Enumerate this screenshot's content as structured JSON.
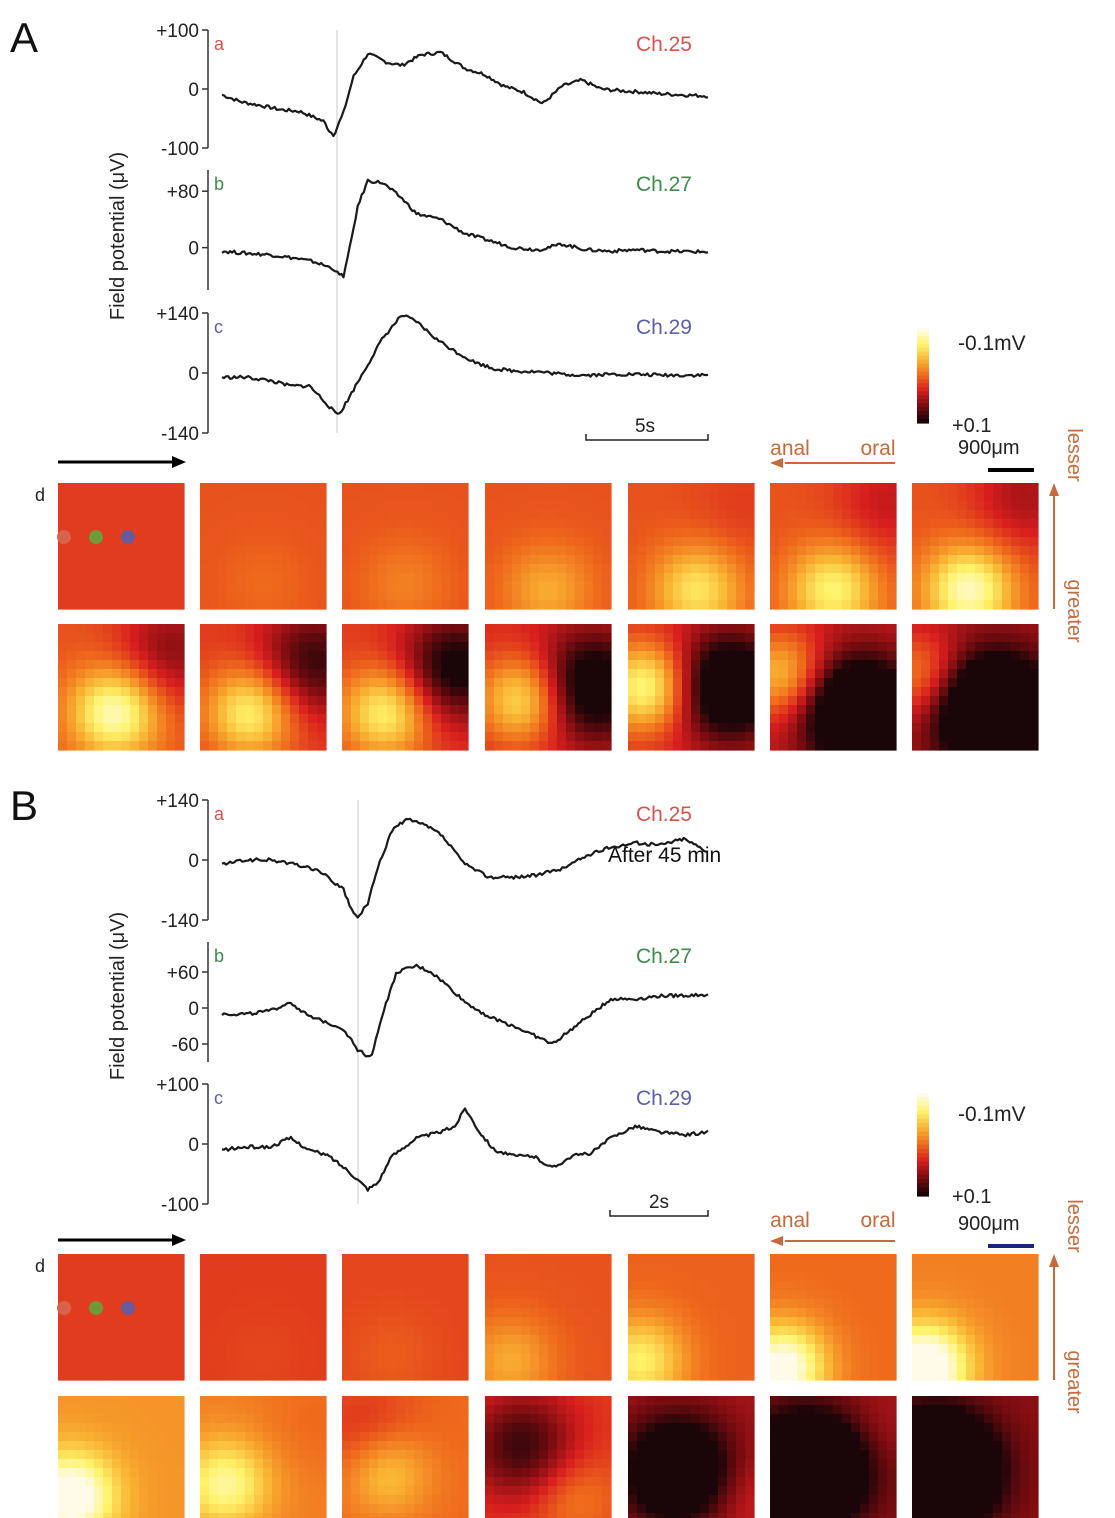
{
  "colors": {
    "trace": "#1a1a1a",
    "ch25": "#d9534a",
    "ch27": "#3c8c4a",
    "ch29": "#5a5fa8",
    "orientation": "#c8693a",
    "arrow_time": "#000000",
    "scalebar_A": "#000000",
    "scalebar_B": "#1a237e",
    "colormap": [
      "#1a0508",
      "#7a0c10",
      "#d81e1e",
      "#ef6a1c",
      "#f9b232",
      "#fff36a",
      "#fffbe8"
    ],
    "electrodes": [
      "#d9634a",
      "#6f9a3a",
      "#6a5a9c"
    ]
  },
  "chart_data": [
    {
      "type": "line",
      "panel": "A",
      "ylabel": "Field potential (μV)",
      "time_scale_label": "5s",
      "series": [
        {
          "letter": "a",
          "name": "Ch.25",
          "ticks": [
            "+100",
            "0",
            "-100"
          ],
          "tick_values": [
            100,
            0,
            -100
          ],
          "ylim": [
            -100,
            100
          ],
          "x": [
            0,
            4,
            8,
            12,
            16,
            19,
            21,
            22,
            23,
            25,
            27,
            30,
            34,
            37,
            41,
            45,
            50,
            54,
            58,
            62,
            66,
            70,
            74,
            78,
            82,
            86,
            90,
            100
          ],
          "y": [
            -10,
            -22,
            -28,
            -35,
            -38,
            -48,
            -55,
            -70,
            -78,
            -40,
            20,
            60,
            45,
            40,
            58,
            62,
            35,
            25,
            5,
            -5,
            -25,
            5,
            15,
            0,
            -3,
            -5,
            -8,
            -12
          ]
        },
        {
          "letter": "b",
          "name": "Ch.27",
          "ticks": [
            "+80",
            "0"
          ],
          "tick_values": [
            80,
            0
          ],
          "ylim": [
            -60,
            110
          ],
          "x": [
            0,
            5,
            10,
            15,
            19,
            21,
            23,
            24,
            25,
            26,
            28,
            30,
            33,
            37,
            40,
            45,
            50,
            55,
            60,
            65,
            70,
            75,
            80,
            85,
            90,
            100
          ],
          "y": [
            -5,
            -8,
            -10,
            -15,
            -20,
            -25,
            -30,
            -38,
            -40,
            -10,
            60,
            95,
            92,
            70,
            48,
            40,
            20,
            10,
            0,
            -3,
            5,
            -3,
            -5,
            -3,
            -5,
            -6
          ]
        },
        {
          "letter": "c",
          "name": "Ch.29",
          "ticks": [
            "+140",
            "0",
            "-140"
          ],
          "tick_values": [
            140,
            0,
            -140
          ],
          "ylim": [
            -140,
            140
          ],
          "x": [
            0,
            5,
            10,
            14,
            18,
            21,
            23,
            24,
            25,
            27,
            30,
            33,
            37,
            40,
            44,
            48,
            52,
            56,
            60,
            65,
            70,
            75,
            80,
            85,
            90,
            100
          ],
          "y": [
            -10,
            -10,
            -18,
            -30,
            -30,
            -65,
            -90,
            -96,
            -80,
            -40,
            20,
            80,
            135,
            120,
            80,
            50,
            25,
            10,
            5,
            3,
            -3,
            -5,
            -3,
            -3,
            -5,
            -5
          ]
        }
      ]
    },
    {
      "type": "line",
      "panel": "B",
      "ylabel": "Field potential (μV)",
      "time_scale_label": "2s",
      "annotation": "After 45 min",
      "series": [
        {
          "letter": "a",
          "name": "Ch.25",
          "ticks": [
            "+140",
            "0",
            "-140"
          ],
          "tick_values": [
            140,
            0,
            -140
          ],
          "ylim": [
            -140,
            140
          ],
          "x": [
            0,
            5,
            10,
            15,
            20,
            25,
            27,
            28,
            30,
            32,
            35,
            38,
            42,
            45,
            50,
            55,
            60,
            65,
            70,
            75,
            80,
            85,
            90,
            95,
            100
          ],
          "y": [
            -10,
            0,
            0,
            -10,
            -25,
            -70,
            -125,
            -135,
            -100,
            -20,
            70,
            95,
            80,
            60,
            -10,
            -40,
            -40,
            -35,
            -20,
            10,
            30,
            40,
            35,
            50,
            20
          ]
        },
        {
          "letter": "b",
          "name": "Ch.27",
          "ticks": [
            "+60",
            "0",
            "-60"
          ],
          "tick_values": [
            60,
            0,
            -60
          ],
          "ylim": [
            -90,
            110
          ],
          "x": [
            0,
            5,
            10,
            14,
            18,
            22,
            25,
            28,
            30,
            31,
            33,
            36,
            40,
            43,
            46,
            50,
            55,
            60,
            64,
            68,
            72,
            76,
            80,
            85,
            90,
            100
          ],
          "y": [
            -10,
            -10,
            -5,
            10,
            -15,
            -25,
            -35,
            -70,
            -80,
            -75,
            -10,
            60,
            70,
            60,
            40,
            10,
            -15,
            -30,
            -45,
            -60,
            -35,
            -10,
            15,
            15,
            20,
            22
          ]
        },
        {
          "letter": "c",
          "name": "Ch.29",
          "ticks": [
            "+100",
            "0",
            "-100"
          ],
          "tick_values": [
            100,
            0,
            -100
          ],
          "ylim": [
            -100,
            100
          ],
          "x": [
            0,
            5,
            10,
            14,
            18,
            22,
            26,
            28,
            30,
            32,
            35,
            40,
            45,
            48,
            50,
            53,
            56,
            60,
            64,
            68,
            72,
            76,
            80,
            85,
            90,
            95,
            100
          ],
          "y": [
            -10,
            -5,
            -5,
            10,
            -10,
            -20,
            -45,
            -60,
            -75,
            -65,
            -20,
            10,
            20,
            30,
            60,
            20,
            -10,
            -20,
            -20,
            -40,
            -20,
            -15,
            10,
            30,
            20,
            15,
            20
          ]
        }
      ]
    },
    {
      "type": "heatmap",
      "panel": "A",
      "label": "d",
      "colorbar": {
        "top_label": "-0.1mV",
        "bottom_label": "+0.1"
      },
      "scale_label": "900μm",
      "axis_labels": {
        "anal": "anal",
        "oral": "oral",
        "lesser": "lesser",
        "greater": "greater"
      },
      "electrodes": [
        "Ch.25",
        "Ch.27",
        "Ch.29"
      ],
      "frames": [
        {
          "row": 0,
          "col": 0,
          "base": 0.4,
          "yl": 0.0,
          "yl_cx": 0.5,
          "yl_cy": 0.8,
          "rd": 0.0,
          "rd_cx": 0.8,
          "rd_cy": 0.5
        },
        {
          "row": 0,
          "col": 1,
          "base": 0.45,
          "yl": 0.05,
          "yl_cx": 0.5,
          "yl_cy": 0.8,
          "rd": 0.0,
          "rd_cx": 0.8,
          "rd_cy": 0.5
        },
        {
          "row": 0,
          "col": 2,
          "base": 0.45,
          "yl": 0.1,
          "yl_cx": 0.5,
          "yl_cy": 0.8,
          "rd": 0.0,
          "rd_cx": 0.8,
          "rd_cy": 0.5
        },
        {
          "row": 0,
          "col": 3,
          "base": 0.45,
          "yl": 0.2,
          "yl_cx": 0.5,
          "yl_cy": 0.85,
          "rd": 0.0,
          "rd_cx": 0.8,
          "rd_cy": 0.5
        },
        {
          "row": 0,
          "col": 4,
          "base": 0.45,
          "yl": 0.35,
          "yl_cx": 0.55,
          "yl_cy": 0.85,
          "rd": 0.05,
          "rd_cx": 0.9,
          "rd_cy": 0.2
        },
        {
          "row": 0,
          "col": 5,
          "base": 0.45,
          "yl": 0.4,
          "yl_cx": 0.5,
          "yl_cy": 0.85,
          "rd": 0.15,
          "rd_cx": 0.95,
          "rd_cy": 0.15
        },
        {
          "row": 0,
          "col": 6,
          "base": 0.45,
          "yl": 0.5,
          "yl_cx": 0.45,
          "yl_cy": 0.85,
          "rd": 0.2,
          "rd_cx": 0.9,
          "rd_cy": 0.1
        },
        {
          "row": 1,
          "col": 0,
          "base": 0.45,
          "yl": 0.5,
          "yl_cx": 0.45,
          "yl_cy": 0.7,
          "rd": 0.25,
          "rd_cx": 0.9,
          "rd_cy": 0.2
        },
        {
          "row": 1,
          "col": 1,
          "base": 0.4,
          "yl": 0.45,
          "yl_cx": 0.4,
          "yl_cy": 0.7,
          "rd": 0.35,
          "rd_cx": 0.9,
          "rd_cy": 0.3
        },
        {
          "row": 1,
          "col": 2,
          "base": 0.4,
          "yl": 0.45,
          "yl_cx": 0.35,
          "yl_cy": 0.7,
          "rd": 0.45,
          "rd_cx": 0.9,
          "rd_cy": 0.35
        },
        {
          "row": 1,
          "col": 3,
          "base": 0.35,
          "yl": 0.45,
          "yl_cx": 0.3,
          "yl_cy": 0.6,
          "rd": 0.5,
          "rd_cx": 0.85,
          "rd_cy": 0.5
        },
        {
          "row": 1,
          "col": 4,
          "base": 0.35,
          "yl": 0.55,
          "yl_cx": 0.15,
          "yl_cy": 0.5,
          "rd": 0.6,
          "rd_cx": 0.8,
          "rd_cy": 0.5
        },
        {
          "row": 1,
          "col": 5,
          "base": 0.3,
          "yl": 0.4,
          "yl_cx": 0.1,
          "yl_cy": 0.4,
          "rd": 0.75,
          "rd_cx": 0.7,
          "rd_cy": 0.7
        },
        {
          "row": 1,
          "col": 6,
          "base": 0.25,
          "yl": 0.3,
          "yl_cx": 0.05,
          "yl_cy": 0.4,
          "rd": 0.85,
          "rd_cx": 0.65,
          "rd_cy": 0.7
        }
      ]
    },
    {
      "type": "heatmap",
      "panel": "B",
      "label": "d",
      "colorbar": {
        "top_label": "-0.1mV",
        "bottom_label": "+0.1"
      },
      "scale_label": "900μm",
      "axis_labels": {
        "anal": "anal",
        "oral": "oral",
        "lesser": "lesser",
        "greater": "greater"
      },
      "electrodes": [
        "Ch.25",
        "Ch.27",
        "Ch.29"
      ],
      "frames": [
        {
          "row": 0,
          "col": 0,
          "base": 0.4,
          "yl": 0.0,
          "yl_cx": 0.5,
          "yl_cy": 0.8,
          "rd": 0.0,
          "rd_cx": 0.8,
          "rd_cy": 0.5
        },
        {
          "row": 0,
          "col": 1,
          "base": 0.4,
          "yl": 0.02,
          "yl_cx": 0.5,
          "yl_cy": 0.8,
          "rd": 0.0,
          "rd_cx": 0.8,
          "rd_cy": 0.5
        },
        {
          "row": 0,
          "col": 2,
          "base": 0.42,
          "yl": 0.05,
          "yl_cx": 0.4,
          "yl_cy": 0.8,
          "rd": 0.0,
          "rd_cx": 0.8,
          "rd_cy": 0.5
        },
        {
          "row": 0,
          "col": 3,
          "base": 0.45,
          "yl": 0.2,
          "yl_cx": 0.2,
          "yl_cy": 0.85,
          "rd": 0.0,
          "rd_cx": 0.8,
          "rd_cy": 0.5
        },
        {
          "row": 0,
          "col": 4,
          "base": 0.48,
          "yl": 0.35,
          "yl_cx": 0.1,
          "yl_cy": 0.85,
          "rd": 0.0,
          "rd_cx": 0.8,
          "rd_cy": 0.5
        },
        {
          "row": 0,
          "col": 5,
          "base": 0.5,
          "yl": 0.55,
          "yl_cx": 0.1,
          "yl_cy": 0.9,
          "rd": 0.0,
          "rd_cx": 0.8,
          "rd_cy": 0.5
        },
        {
          "row": 0,
          "col": 6,
          "base": 0.55,
          "yl": 0.6,
          "yl_cx": 0.1,
          "yl_cy": 0.9,
          "rd": 0.0,
          "rd_cx": 0.8,
          "rd_cy": 0.5
        },
        {
          "row": 1,
          "col": 0,
          "base": 0.6,
          "yl": 0.5,
          "yl_cx": 0.1,
          "yl_cy": 0.8,
          "rd": 0.0,
          "rd_cx": 0.8,
          "rd_cy": 0.5
        },
        {
          "row": 1,
          "col": 1,
          "base": 0.55,
          "yl": 0.35,
          "yl_cx": 0.2,
          "yl_cy": 0.7,
          "rd": 0.05,
          "rd_cx": 0.9,
          "rd_cy": 0.2
        },
        {
          "row": 1,
          "col": 2,
          "base": 0.5,
          "yl": 0.25,
          "yl_cx": 0.35,
          "yl_cy": 0.6,
          "rd": 0.15,
          "rd_cx": 0.2,
          "rd_cy": 0.3
        },
        {
          "row": 1,
          "col": 3,
          "base": 0.4,
          "yl": 0.15,
          "yl_cx": 0.7,
          "yl_cy": 0.8,
          "rd": 0.35,
          "rd_cx": 0.3,
          "rd_cy": 0.4
        },
        {
          "row": 1,
          "col": 4,
          "base": 0.25,
          "yl": 0.1,
          "yl_cx": 0.9,
          "yl_cy": 0.8,
          "rd": 0.55,
          "rd_cx": 0.4,
          "rd_cy": 0.6
        },
        {
          "row": 1,
          "col": 5,
          "base": 0.2,
          "yl": 0.05,
          "yl_cx": 0.9,
          "yl_cy": 0.2,
          "rd": 0.75,
          "rd_cx": 0.3,
          "rd_cy": 0.6
        },
        {
          "row": 1,
          "col": 6,
          "base": 0.2,
          "yl": 0.0,
          "yl_cx": 0.9,
          "yl_cy": 0.2,
          "rd": 0.9,
          "rd_cx": 0.2,
          "rd_cy": 0.6
        }
      ]
    }
  ],
  "panels": {
    "A": "A",
    "B": "B"
  }
}
